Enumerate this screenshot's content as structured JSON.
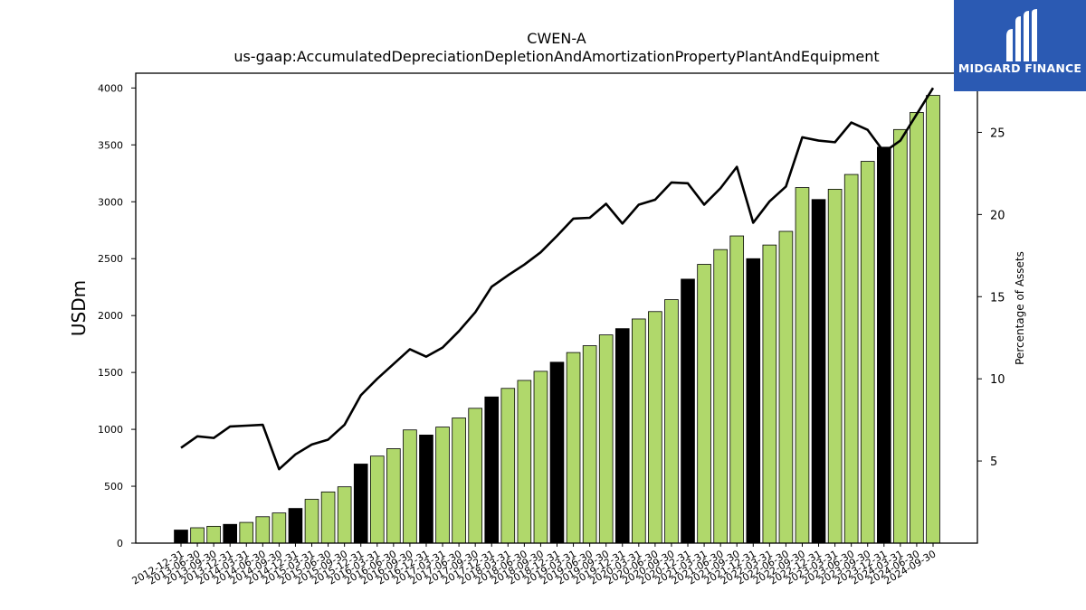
{
  "brand": {
    "name": "MIDGARD FINANCE",
    "bg_color": "#2b5ab3"
  },
  "chart_data": {
    "type": "bar+line",
    "title": "CWEN-A",
    "subtitle": "us-gaap:AccumulatedDepreciationDepletionAndAmortizationPropertyPlantAndEquipment",
    "ylabel": "USDm",
    "y2label": "Percentage of Assets",
    "ylim": [
      0,
      4130
    ],
    "y2lim": [
      0,
      28.6
    ],
    "yticks": [
      0,
      500,
      1000,
      1500,
      2000,
      2500,
      3000,
      3500,
      4000
    ],
    "y2ticks": [
      5,
      10,
      15,
      20,
      25
    ],
    "colors": {
      "bar_default": "#b0d86b",
      "bar_year_end": "#000000",
      "line": "#000000",
      "edge": "#000000"
    },
    "categories": [
      "2012-12-31",
      "2013-06-30",
      "2013-09-30",
      "2013-12-31",
      "2014-03-31",
      "2014-06-30",
      "2014-09-30",
      "2014-12-31",
      "2015-03-31",
      "2015-06-30",
      "2015-09-30",
      "2015-12-31",
      "2016-03-31",
      "2016-06-30",
      "2016-09-30",
      "2016-12-31",
      "2017-03-31",
      "2017-06-30",
      "2017-09-30",
      "2017-12-31",
      "2018-03-31",
      "2018-06-30",
      "2018-09-30",
      "2018-12-31",
      "2019-03-31",
      "2019-06-30",
      "2019-09-30",
      "2019-12-31",
      "2020-03-31",
      "2020-06-30",
      "2020-09-30",
      "2020-12-31",
      "2021-03-31",
      "2021-06-30",
      "2021-09-30",
      "2021-12-31",
      "2022-03-31",
      "2022-06-30",
      "2022-09-30",
      "2022-12-31",
      "2023-03-31",
      "2023-06-30",
      "2023-09-30",
      "2023-12-31",
      "2024-03-31",
      "2024-06-30",
      "2024-09-30"
    ],
    "series": [
      {
        "axis": "left",
        "kind": "bar",
        "values": [
          115,
          135,
          148,
          165,
          182,
          232,
          265,
          305,
          385,
          450,
          495,
          695,
          765,
          830,
          995,
          950,
          1020,
          1100,
          1185,
          1285,
          1360,
          1430,
          1510,
          1590,
          1675,
          1735,
          1830,
          1885,
          1970,
          2035,
          2140,
          2320,
          2450,
          2580,
          2700,
          2500,
          2620,
          2740,
          3125,
          3020,
          3110,
          3240,
          3355,
          3480,
          3635,
          3785,
          3935
        ]
      },
      {
        "axis": "right",
        "kind": "line",
        "values": [
          5.8,
          6.5,
          6.4,
          7.1,
          7.15,
          7.2,
          4.5,
          5.4,
          6.0,
          6.3,
          7.2,
          9.0,
          10.0,
          10.9,
          11.8,
          11.35,
          11.9,
          12.9,
          14.05,
          15.6,
          16.3,
          16.95,
          17.7,
          18.7,
          19.75,
          19.8,
          20.65,
          19.45,
          20.6,
          20.9,
          21.95,
          21.9,
          20.6,
          21.6,
          22.9,
          19.5,
          20.8,
          21.7,
          24.7,
          24.5,
          24.4,
          25.6,
          25.15,
          23.8,
          24.5,
          26.1,
          27.7
        ]
      }
    ]
  }
}
